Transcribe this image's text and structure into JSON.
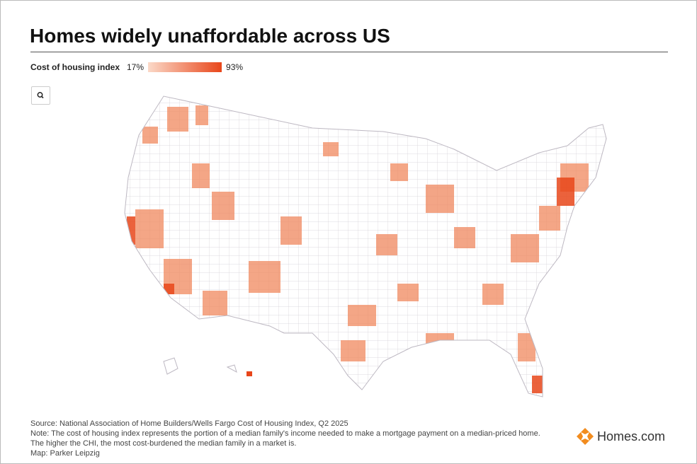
{
  "header": {
    "title": "Homes widely unaffordable across US"
  },
  "legend": {
    "label": "Cost of housing index",
    "min": {
      "value": 17,
      "label": "17%"
    },
    "max": {
      "value": 93,
      "label": "93%"
    },
    "color_min": "#fbd9c8",
    "color_max": "#e8461a"
  },
  "footer": {
    "lines": [
      "Source: National Association of Home Builders/Wells Fargo Cost of Housing Index, Q2 2025",
      "Note: The cost of housing index represents the portion of a median family's income needed to make a mortgage payment on a median-priced home.",
      "The higher the CHI, the most cost-burdened the median family in a market is.",
      "Map: Parker Leipzig"
    ]
  },
  "logo": {
    "text": "Homes.com"
  }
}
